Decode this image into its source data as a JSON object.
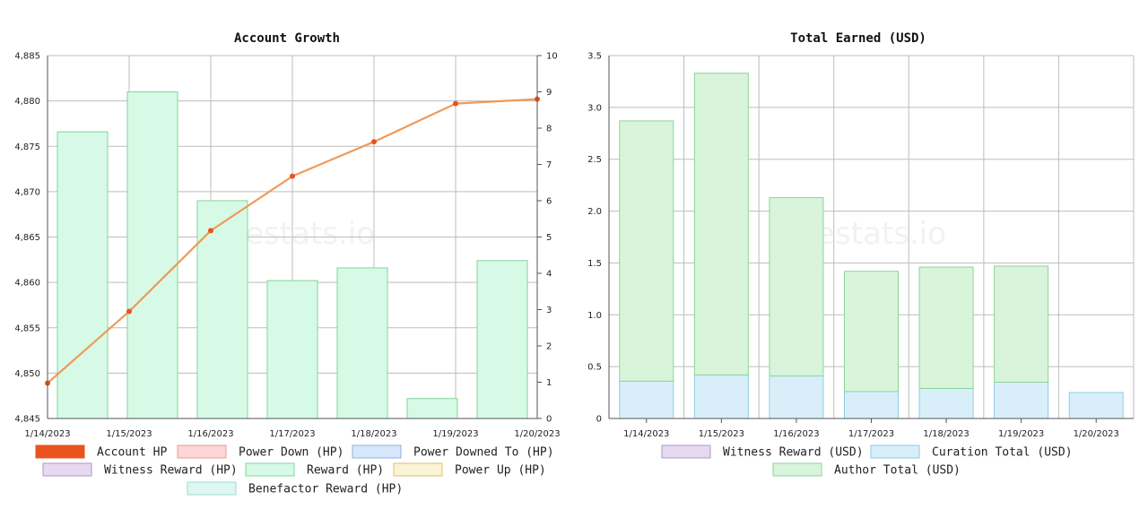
{
  "site": {
    "watermark": "hivestats.io"
  },
  "chart_data": [
    {
      "type": "bar",
      "title": "Account Growth",
      "categories": [
        "1/14/2023",
        "1/15/2023",
        "1/16/2023",
        "1/17/2023",
        "1/18/2023",
        "1/19/2023",
        "1/20/2023"
      ],
      "ylim": [
        4845,
        4885
      ],
      "yticks": [
        4845,
        4850,
        4855,
        4860,
        4865,
        4870,
        4875,
        4880,
        4885
      ],
      "y2lim": [
        0,
        10
      ],
      "y2ticks": [
        0,
        1,
        2,
        3,
        4,
        5,
        6,
        7,
        8,
        9,
        10
      ],
      "series": [
        {
          "name": "Account HP",
          "type": "line",
          "axis": "left",
          "color": "#e8531e",
          "line_color": "#ef9a5a",
          "values": [
            4848.9,
            4856.8,
            4865.7,
            4871.7,
            4875.5,
            4879.7,
            4880.2
          ]
        },
        {
          "name": "Power Down (HP)",
          "color": "#fdd5d5",
          "border": "#e89a9a",
          "values": [
            0,
            0,
            0,
            0,
            0,
            0,
            0
          ]
        },
        {
          "name": "Power Downed To (HP)",
          "color": "#d6e6fb",
          "border": "#8eb2e0",
          "values": [
            0,
            0,
            0,
            0,
            0,
            0,
            0
          ]
        },
        {
          "name": "Witness Reward (HP)",
          "color": "#e6d9f0",
          "border": "#b094c8",
          "values": [
            0,
            0,
            0,
            0,
            0,
            0,
            0
          ]
        },
        {
          "name": "Reward (HP)",
          "axis": "right",
          "color": "#d7fae6",
          "border": "#7fd69c",
          "values": [
            7.9,
            9.0,
            6.0,
            3.8,
            4.15,
            0.55,
            4.35
          ]
        },
        {
          "name": "Power Up (HP)",
          "color": "#faf3d4",
          "border": "#d8c56e",
          "values": [
            0,
            0,
            0,
            0,
            0,
            0,
            0
          ]
        },
        {
          "name": "Benefactor Reward (HP)",
          "color": "#ddf7f2",
          "border": "#9fdcd0",
          "values": [
            0,
            0,
            0,
            0,
            0,
            0,
            0
          ]
        }
      ],
      "grid": true,
      "legend": "bottom"
    },
    {
      "type": "bar",
      "title": "Total Earned (USD)",
      "stacked": true,
      "categories": [
        "1/14/2023",
        "1/15/2023",
        "1/16/2023",
        "1/17/2023",
        "1/18/2023",
        "1/19/2023",
        "1/20/2023"
      ],
      "ylim": [
        0,
        3.5
      ],
      "yticks": [
        "0",
        "0.5",
        "1.0",
        "1.5",
        "2.0",
        "2.5",
        "3.0",
        "3.5"
      ],
      "series": [
        {
          "name": "Witness Reward (USD)",
          "color": "#e6d9f0",
          "border": "#b094c8",
          "values": [
            0,
            0,
            0,
            0,
            0,
            0,
            0
          ]
        },
        {
          "name": "Curation Total (USD)",
          "color": "#d8effa",
          "border": "#8ecbe6",
          "values": [
            0.36,
            0.42,
            0.41,
            0.26,
            0.29,
            0.35,
            0.25
          ]
        },
        {
          "name": "Author Total (USD)",
          "color": "#d8f4da",
          "border": "#8fd49a",
          "values": [
            2.51,
            2.91,
            1.72,
            1.16,
            1.17,
            1.12,
            0
          ]
        }
      ],
      "grid": true,
      "legend": "bottom"
    }
  ]
}
